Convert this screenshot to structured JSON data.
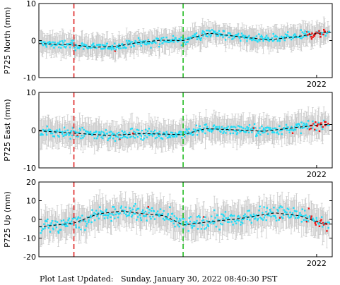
{
  "footer": {
    "label": "Plot Last Updated:",
    "timestamp": "Sunday, January 30, 2022 08:40:30 PST"
  },
  "colors": {
    "data_points": "#22ddf7",
    "recent_points": "#ee1111",
    "error_bars": "#c8c8c8",
    "trend_line": "#000000",
    "vline_red": "#dd2222",
    "vline_green": "#22bb22"
  },
  "chart_data": [
    {
      "type": "scatter",
      "ylabel": "P725 North (mm)",
      "ylim": [
        -10,
        10
      ],
      "yticks": [
        "10",
        "0",
        "-10"
      ],
      "xlabel_tick": "2022",
      "xlim": [
        2013.99,
        2022.45
      ],
      "vlines": [
        {
          "x": 2015.0,
          "color": "red"
        },
        {
          "x": 2018.15,
          "color": "green"
        }
      ],
      "trend": [
        {
          "x": 2014.0,
          "y": -0.8
        },
        {
          "x": 2015.0,
          "y": -1.2
        },
        {
          "x": 2015.6,
          "y": -1.8
        },
        {
          "x": 2016.2,
          "y": -1.6
        },
        {
          "x": 2016.8,
          "y": -0.6
        },
        {
          "x": 2017.5,
          "y": 0.1
        },
        {
          "x": 2018.15,
          "y": 0.0
        },
        {
          "x": 2018.9,
          "y": 2.0
        },
        {
          "x": 2019.8,
          "y": 1.0
        },
        {
          "x": 2020.6,
          "y": 0.2
        },
        {
          "x": 2021.4,
          "y": 1.0
        },
        {
          "x": 2022.2,
          "y": 2.2
        }
      ],
      "noise": 1.2,
      "errorbar": 2.5
    },
    {
      "type": "scatter",
      "ylabel": "P725 East (mm)",
      "ylim": [
        -10,
        10
      ],
      "yticks": [
        "10",
        "0",
        "-10"
      ],
      "xlabel_tick": "2022",
      "xlim": [
        2013.99,
        2022.45
      ],
      "vlines": [
        {
          "x": 2015.0,
          "color": "red"
        },
        {
          "x": 2018.15,
          "color": "green"
        }
      ],
      "trend": [
        {
          "x": 2014.0,
          "y": -0.2
        },
        {
          "x": 2015.0,
          "y": -0.8
        },
        {
          "x": 2016.0,
          "y": -1.4
        },
        {
          "x": 2017.0,
          "y": -0.9
        },
        {
          "x": 2018.15,
          "y": -1.2
        },
        {
          "x": 2018.8,
          "y": 0.4
        },
        {
          "x": 2019.6,
          "y": 0.1
        },
        {
          "x": 2020.5,
          "y": -0.3
        },
        {
          "x": 2021.3,
          "y": 0.6
        },
        {
          "x": 2022.2,
          "y": 1.5
        }
      ],
      "noise": 1.4,
      "errorbar": 3.0
    },
    {
      "type": "scatter",
      "ylabel": "P725 Up (mm)",
      "ylim": [
        -20,
        20
      ],
      "yticks": [
        "20",
        "10",
        "0",
        "-10",
        "-20"
      ],
      "xlabel_tick": "2022",
      "xlim": [
        2013.99,
        2022.45
      ],
      "vlines": [
        {
          "x": 2015.0,
          "color": "red"
        },
        {
          "x": 2018.15,
          "color": "green"
        }
      ],
      "trend": [
        {
          "x": 2014.0,
          "y": -4.0
        },
        {
          "x": 2015.0,
          "y": -2.0
        },
        {
          "x": 2015.7,
          "y": 3.0
        },
        {
          "x": 2016.4,
          "y": 4.5
        },
        {
          "x": 2017.0,
          "y": 3.0
        },
        {
          "x": 2017.6,
          "y": 2.0
        },
        {
          "x": 2018.15,
          "y": -3.0
        },
        {
          "x": 2018.8,
          "y": -1.5
        },
        {
          "x": 2019.8,
          "y": 0.5
        },
        {
          "x": 2020.8,
          "y": 3.5
        },
        {
          "x": 2021.5,
          "y": 2.0
        },
        {
          "x": 2022.2,
          "y": -2.5
        }
      ],
      "noise": 4.0,
      "errorbar": 7.0
    }
  ]
}
